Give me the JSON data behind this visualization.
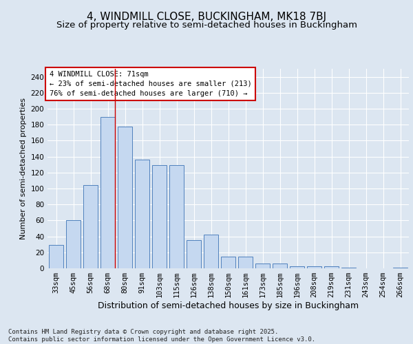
{
  "title": "4, WINDMILL CLOSE, BUCKINGHAM, MK18 7BJ",
  "subtitle": "Size of property relative to semi-detached houses in Buckingham",
  "xlabel": "Distribution of semi-detached houses by size in Buckingham",
  "ylabel": "Number of semi-detached properties",
  "categories": [
    "33sqm",
    "45sqm",
    "56sqm",
    "68sqm",
    "80sqm",
    "91sqm",
    "103sqm",
    "115sqm",
    "126sqm",
    "138sqm",
    "150sqm",
    "161sqm",
    "173sqm",
    "185sqm",
    "196sqm",
    "208sqm",
    "219sqm",
    "231sqm",
    "243sqm",
    "254sqm",
    "266sqm"
  ],
  "values": [
    29,
    60,
    104,
    190,
    178,
    136,
    129,
    129,
    35,
    42,
    15,
    15,
    6,
    6,
    3,
    3,
    3,
    1,
    0,
    0,
    1
  ],
  "bar_color": "#c5d8f0",
  "bar_edge_color": "#4f81bd",
  "vline_index": 3,
  "vline_color": "#cc0000",
  "ylim": [
    0,
    250
  ],
  "yticks": [
    0,
    20,
    40,
    60,
    80,
    100,
    120,
    140,
    160,
    180,
    200,
    220,
    240
  ],
  "annotation_text": "4 WINDMILL CLOSE: 71sqm\n← 23% of semi-detached houses are smaller (213)\n76% of semi-detached houses are larger (710) →",
  "annotation_box_facecolor": "#ffffff",
  "annotation_box_edgecolor": "#cc0000",
  "background_color": "#dce6f1",
  "footer_text": "Contains HM Land Registry data © Crown copyright and database right 2025.\nContains public sector information licensed under the Open Government Licence v3.0.",
  "title_fontsize": 11,
  "subtitle_fontsize": 9.5,
  "xlabel_fontsize": 9,
  "ylabel_fontsize": 8,
  "tick_fontsize": 7.5,
  "annotation_fontsize": 7.5,
  "footer_fontsize": 6.5
}
